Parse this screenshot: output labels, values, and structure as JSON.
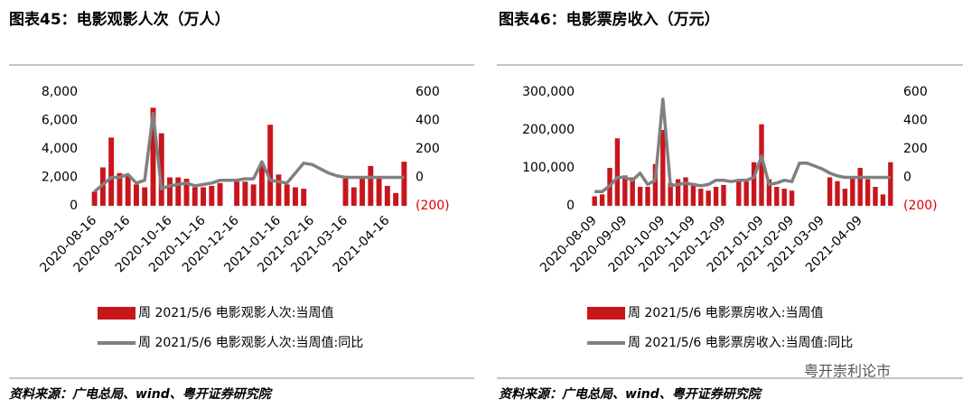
{
  "chart_data": [
    {
      "type": "bar",
      "title": "图表45：电影观影人次（万人）",
      "categories": [
        "2020-08-16",
        null,
        null,
        null,
        "2020-09-16",
        null,
        null,
        null,
        null,
        "2020-10-16",
        null,
        null,
        null,
        "2020-11-16",
        null,
        null,
        null,
        "2020-12-16",
        null,
        null,
        null,
        null,
        "2021-01-16",
        null,
        null,
        null,
        "2021-02-16",
        null,
        null,
        null,
        "2021-03-16",
        null,
        null,
        null,
        null,
        "2021-04-16",
        null,
        null
      ],
      "series": [
        {
          "name": "周 2021/5/6 电影观影人次:当周值",
          "type": "bar",
          "color": "#c8161d",
          "values": [
            1000,
            2700,
            4800,
            2300,
            2200,
            1500,
            1300,
            6900,
            5100,
            2000,
            2000,
            1900,
            1300,
            1300,
            1400,
            1600,
            null,
            1700,
            1700,
            1500,
            3000,
            5700,
            2200,
            1500,
            1300,
            1200,
            null,
            null,
            null,
            null,
            2100,
            1300,
            1900,
            2800,
            2000,
            1400,
            900,
            3100
          ]
        },
        {
          "name": "周 2021/5/6 电影观影人次:当周值:同比",
          "type": "line",
          "axis": "y2",
          "color": "#808080",
          "values": [
            -100,
            -50,
            0,
            0,
            20,
            -40,
            -20,
            450,
            -80,
            -60,
            -50,
            -40,
            -60,
            -50,
            -40,
            -20,
            -20,
            -20,
            -10,
            -10,
            110,
            -20,
            -30,
            -40,
            30,
            100,
            90,
            60,
            30,
            10,
            0,
            0,
            0,
            0,
            0,
            0,
            0,
            0
          ]
        }
      ],
      "ylim": [
        0,
        8000
      ],
      "yticks": [
        0,
        {
          "value": 2000,
          "label": "2,000"
        },
        {
          "value": 4000,
          "label": "4,000"
        },
        {
          "value": 6000,
          "label": "6,000"
        },
        {
          "value": 8000,
          "label": "8,000"
        }
      ],
      "y2lim": [
        -200,
        600
      ],
      "y2ticks": [
        {
          "value": -200,
          "label": "(200)"
        },
        0,
        200,
        400,
        600
      ],
      "source": "资料来源：广电总局、wind、粤开证券研究院"
    },
    {
      "type": "bar",
      "title": "图表46：电影票房收入（万元）",
      "categories": [
        "2020-08-09",
        null,
        null,
        null,
        "2020-09-09",
        null,
        null,
        null,
        null,
        "2020-10-09",
        null,
        null,
        null,
        "2020-11-09",
        null,
        null,
        null,
        "2020-12-09",
        null,
        null,
        null,
        null,
        "2021-01-09",
        null,
        null,
        null,
        "2021-02-09",
        null,
        null,
        null,
        "2021-03-09",
        null,
        null,
        null,
        null,
        "2021-04-09",
        null,
        null,
        null,
        null
      ],
      "series": [
        {
          "name": "周 2021/5/6 电影票房收入:当周值",
          "type": "bar",
          "color": "#c8161d",
          "values": [
            25000,
            30000,
            100000,
            178000,
            80000,
            75000,
            50000,
            50000,
            110000,
            200000,
            60000,
            70000,
            75000,
            60000,
            45000,
            40000,
            50000,
            55000,
            null,
            65000,
            70000,
            115000,
            215000,
            70000,
            50000,
            45000,
            40000,
            null,
            null,
            null,
            null,
            75000,
            65000,
            45000,
            75000,
            100000,
            70000,
            50000,
            30000,
            115000
          ]
        },
        {
          "name": "周 2021/5/6 电影票房收入:当周值:同比",
          "type": "line",
          "axis": "y2",
          "color": "#808080",
          "values": [
            -100,
            -100,
            -60,
            0,
            0,
            -20,
            30,
            -50,
            -20,
            550,
            -60,
            -50,
            -40,
            -50,
            -60,
            -50,
            -20,
            -20,
            -30,
            -20,
            -20,
            0,
            150,
            -50,
            -40,
            -20,
            -30,
            100,
            100,
            80,
            60,
            30,
            10,
            0,
            0,
            0,
            0,
            0,
            0,
            0
          ]
        }
      ],
      "ylim": [
        0,
        300000
      ],
      "yticks": [
        0,
        {
          "value": 100000,
          "label": "100,000"
        },
        {
          "value": 200000,
          "label": "200,000"
        },
        {
          "value": 300000,
          "label": "300,000"
        }
      ],
      "y2lim": [
        -200,
        600
      ],
      "y2ticks": [
        {
          "value": -200,
          "label": "(200)"
        },
        0,
        200,
        400,
        600
      ],
      "source": "资料来源：广电总局、wind、粤开证券研究院"
    }
  ],
  "watermark": "粤开崇利论市"
}
